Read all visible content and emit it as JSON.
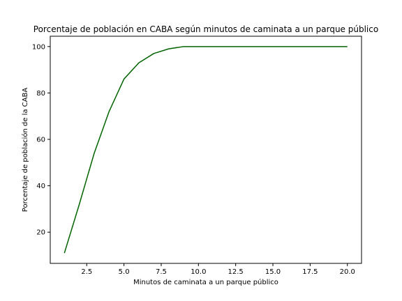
{
  "chart_data": {
    "type": "line",
    "title": "Porcentaje de población en CABA según minutos de caminata a un parque público",
    "xlabel": "Minutos de caminata a un parque público",
    "ylabel": "Porcentaje de población de la CABA",
    "xlim": [
      0.05,
      20.95
    ],
    "ylim": [
      6.55,
      104.45
    ],
    "grid": false,
    "legend": "none",
    "xticks": [
      "2.5",
      "5.0",
      "7.5",
      "10.0",
      "12.5",
      "15.0",
      "17.5",
      "20.0"
    ],
    "yticks": [
      "20",
      "40",
      "60",
      "80",
      "100"
    ],
    "series": [
      {
        "color": "#006400",
        "x": [
          1,
          2,
          3,
          4,
          5,
          6,
          7,
          8,
          9,
          10,
          11,
          12,
          13,
          14,
          15,
          16,
          17,
          18,
          19,
          20
        ],
        "y": [
          11,
          32,
          54,
          72,
          86,
          93,
          97,
          99,
          100,
          100,
          100,
          100,
          100,
          100,
          100,
          100,
          100,
          100,
          100,
          100
        ]
      }
    ]
  }
}
